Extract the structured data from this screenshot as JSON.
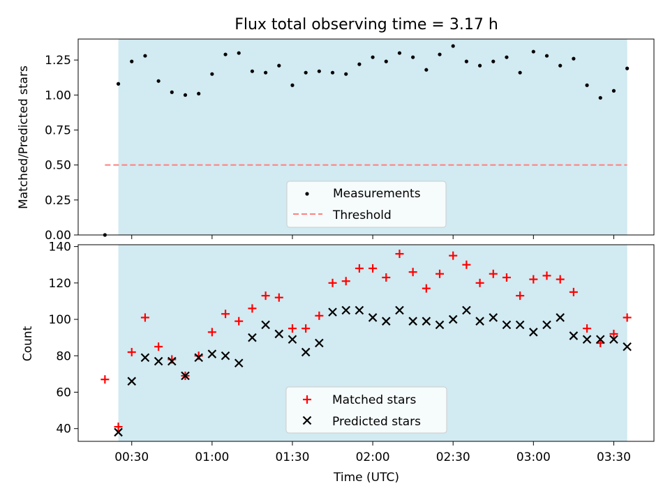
{
  "chart_data": [
    {
      "type": "scatter",
      "title": "Flux total observing time = 3.17 h",
      "xlabel": "",
      "ylabel": "Matched/Predicted stars",
      "xlim": [
        10,
        225
      ],
      "ylim": [
        0,
        1.4
      ],
      "yticks": [
        0,
        0.25,
        0.5,
        0.75,
        1.0,
        1.25
      ],
      "ytick_labels": [
        "0.00",
        "0.25",
        "0.50",
        "0.75",
        "1.00",
        "1.25"
      ],
      "shaded_span": [
        25,
        215
      ],
      "threshold": {
        "value": 0.5,
        "x_start": 20,
        "x_end": 215
      },
      "legend": {
        "entries": [
          "Measurements",
          "Threshold"
        ],
        "placement": "lower-center"
      },
      "series": [
        {
          "name": "Measurements",
          "x": [
            20,
            25,
            30,
            35,
            40,
            45,
            50,
            55,
            60,
            65,
            70,
            75,
            80,
            85,
            90,
            95,
            100,
            105,
            110,
            115,
            120,
            125,
            130,
            135,
            140,
            145,
            150,
            155,
            160,
            165,
            170,
            175,
            180,
            185,
            190,
            195,
            200,
            205,
            210,
            215
          ],
          "y": [
            0.0,
            1.08,
            1.24,
            1.28,
            1.1,
            1.02,
            1.0,
            1.01,
            1.15,
            1.29,
            1.3,
            1.17,
            1.16,
            1.21,
            1.07,
            1.16,
            1.17,
            1.16,
            1.15,
            1.22,
            1.27,
            1.24,
            1.3,
            1.27,
            1.18,
            1.29,
            1.35,
            1.24,
            1.21,
            1.24,
            1.27,
            1.16,
            1.31,
            1.28,
            1.21,
            1.26,
            1.07,
            0.98,
            1.03,
            1.19
          ]
        }
      ]
    },
    {
      "type": "scatter",
      "title": "",
      "xlabel": "Time (UTC)",
      "ylabel": "Count",
      "xlim": [
        10,
        225
      ],
      "ylim": [
        33,
        141
      ],
      "xticks": [
        30,
        60,
        90,
        120,
        150,
        180,
        210
      ],
      "xtick_labels": [
        "00:30",
        "01:00",
        "01:30",
        "02:00",
        "02:30",
        "03:00",
        "03:30"
      ],
      "yticks": [
        40,
        60,
        80,
        100,
        120,
        140
      ],
      "ytick_labels": [
        "40",
        "60",
        "80",
        "100",
        "120",
        "140"
      ],
      "shaded_span": [
        25,
        215
      ],
      "legend": {
        "entries": [
          "Matched stars",
          "Predicted stars"
        ],
        "placement": "lower-center"
      },
      "series": [
        {
          "name": "Matched stars",
          "x": [
            20,
            25,
            30,
            35,
            40,
            45,
            50,
            55,
            60,
            65,
            70,
            75,
            80,
            85,
            90,
            95,
            100,
            105,
            110,
            115,
            120,
            125,
            130,
            135,
            140,
            145,
            150,
            155,
            160,
            165,
            170,
            175,
            180,
            185,
            190,
            195,
            200,
            205,
            210,
            215
          ],
          "y": [
            67,
            41,
            82,
            101,
            85,
            78,
            69,
            80,
            93,
            103,
            99,
            106,
            113,
            112,
            95,
            95,
            102,
            120,
            121,
            128,
            128,
            123,
            136,
            126,
            117,
            125,
            135,
            130,
            120,
            125,
            123,
            113,
            122,
            124,
            122,
            115,
            95,
            87,
            92,
            101
          ]
        },
        {
          "name": "Predicted stars",
          "x": [
            25,
            30,
            35,
            40,
            45,
            50,
            55,
            60,
            65,
            70,
            75,
            80,
            85,
            90,
            95,
            100,
            105,
            110,
            115,
            120,
            125,
            130,
            135,
            140,
            145,
            150,
            155,
            160,
            165,
            170,
            175,
            180,
            185,
            190,
            195,
            200,
            205,
            210,
            215
          ],
          "y": [
            38,
            66,
            79,
            77,
            77,
            69,
            79,
            81,
            80,
            76,
            90,
            97,
            92,
            89,
            82,
            87,
            104,
            105,
            105,
            101,
            99,
            105,
            99,
            99,
            97,
            100,
            105,
            99,
            101,
            97,
            97,
            93,
            97,
            101,
            91,
            89,
            89,
            89,
            85
          ]
        }
      ]
    }
  ],
  "colors": {
    "shade": "#add8e6",
    "measurement": "#000000",
    "threshold": "#ff7f7f",
    "matched": "#ff0000",
    "predicted": "#000000"
  }
}
